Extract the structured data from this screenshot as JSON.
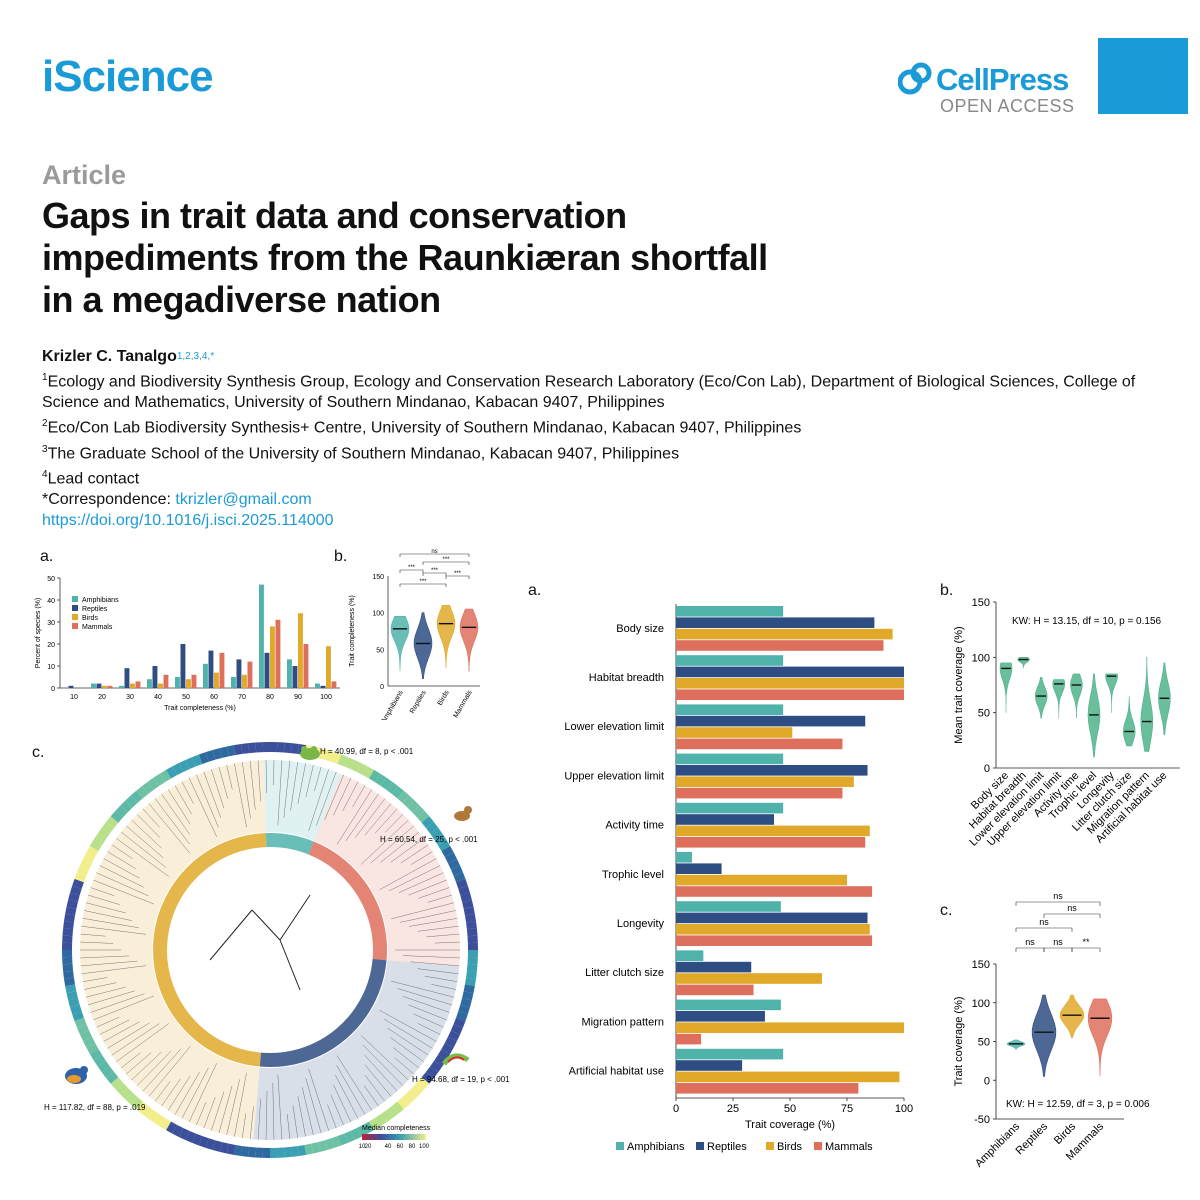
{
  "header": {
    "journal": "iScience",
    "publisher": "CellPress",
    "publisher_sub": "OPEN ACCESS",
    "brand_color": "#1a9bd7"
  },
  "article": {
    "type": "Article",
    "title": "Gaps in trait data and conservation impediments from the Raunkiæran shortfall in a megadiverse nation",
    "author": "Krizler C. Tanalgo",
    "author_sup": "1,2,3,4,*",
    "affiliations": [
      {
        "sup": "1",
        "text": "Ecology and Biodiversity Synthesis Group, Ecology and Conservation Research Laboratory (Eco/Con Lab), Department of Biological Sciences, College of Science and Mathematics, University of Southern Mindanao, Kabacan 9407, Philippines"
      },
      {
        "sup": "2",
        "text": "Eco/Con Lab Biodiversity Synthesis+ Centre, University of Southern Mindanao, Kabacan 9407, Philippines"
      },
      {
        "sup": "3",
        "text": "The Graduate School of the University of Southern Mindanao, Kabacan 9407, Philippines"
      },
      {
        "sup": "4",
        "text": "Lead contact"
      }
    ],
    "correspondence_label": "*Correspondence: ",
    "email": "tkrizler@gmail.com",
    "doi": "https://doi.org/10.1016/j.isci.2025.114000"
  },
  "figure_left": {
    "panel_a": "a.",
    "panel_b": "b.",
    "panel_c": "c.",
    "stats_frog": "H = 40.99, df = 8, p < .001",
    "stats_monkey": "H = 60.54, df = 25, p < .001",
    "stats_lizard": "H = 94.68, df = 19, p < .001",
    "stats_bird": "H = 117.82, df = 88, p = .019",
    "legend_title": "Median completeness",
    "legend_ticks": [
      "10",
      "20",
      "40",
      "60",
      "80",
      "100"
    ]
  },
  "figure_right": {
    "panel_a": "a.",
    "panel_b": "b.",
    "panel_c": "c.",
    "b_stats": "KW: H = 13.15, df = 10, p = 0.156",
    "c_stats": "KW: H = 12.59, df = 3, p = 0.006"
  },
  "colors": {
    "Amphibians": "#4fb3ab",
    "Reptiles": "#2e4d83",
    "Birds": "#e0a92a",
    "Mammals": "#de6f5c"
  },
  "chart_data": [
    {
      "id": "left-a",
      "type": "bar",
      "xlabel": "Trait completeness (%)",
      "ylabel": "Percent of species (%)",
      "ylim": [
        0,
        50
      ],
      "yticks": [
        0,
        10,
        20,
        30,
        40,
        50
      ],
      "categories": [
        "10",
        "20",
        "30",
        "40",
        "50",
        "60",
        "70",
        "80",
        "90",
        "100"
      ],
      "series": [
        {
          "name": "Amphibians",
          "values": [
            0,
            2,
            1,
            4,
            5,
            11,
            5,
            47,
            13,
            2
          ]
        },
        {
          "name": "Reptiles",
          "values": [
            1,
            2,
            9,
            10,
            20,
            17,
            13,
            16,
            10,
            1
          ]
        },
        {
          "name": "Birds",
          "values": [
            0,
            1,
            2,
            2,
            4,
            7,
            6,
            28,
            34,
            19
          ]
        },
        {
          "name": "Mammals",
          "values": [
            0,
            1,
            3,
            6,
            6,
            16,
            12,
            31,
            20,
            3
          ]
        }
      ]
    },
    {
      "id": "left-b",
      "type": "violin",
      "ylabel": "Trait completeness (%)",
      "ylim": [
        0,
        150
      ],
      "yticks": [
        0,
        50,
        100,
        150
      ],
      "categories": [
        "Amphibians",
        "Reptiles",
        "Birds",
        "Mammals"
      ],
      "medians": [
        78,
        58,
        85,
        80
      ],
      "significance": [
        "ns",
        "***",
        "***",
        "***",
        "***",
        "***"
      ]
    },
    {
      "id": "right-a",
      "type": "bar",
      "orientation": "horizontal",
      "xlabel": "Trait coverage (%)",
      "xlim": [
        0,
        100
      ],
      "xticks": [
        0,
        25,
        50,
        75,
        100
      ],
      "categories": [
        "Body size",
        "Habitat breadth",
        "Lower elevation limit",
        "Upper elevation limit",
        "Activity time",
        "Trophic level",
        "Longevity",
        "Litter clutch size",
        "Migration pattern",
        "Artificial habitat use"
      ],
      "series": [
        {
          "name": "Amphibians",
          "values": [
            47,
            47,
            47,
            47,
            47,
            7,
            46,
            12,
            46,
            47
          ]
        },
        {
          "name": "Reptiles",
          "values": [
            87,
            100,
            83,
            84,
            43,
            20,
            84,
            33,
            39,
            29
          ]
        },
        {
          "name": "Birds",
          "values": [
            95,
            100,
            51,
            78,
            85,
            75,
            85,
            64,
            100,
            98
          ]
        },
        {
          "name": "Mammals",
          "values": [
            91,
            100,
            73,
            73,
            83,
            86,
            86,
            34,
            11,
            80
          ]
        }
      ]
    },
    {
      "id": "right-b",
      "type": "violin",
      "ylabel": "Mean trait coverage (%)",
      "ylim": [
        0,
        150
      ],
      "yticks": [
        0,
        50,
        100,
        150
      ],
      "categories": [
        "Body size",
        "Habitat breadth",
        "Lower elevation limit",
        "Upper elevation limit",
        "Activity time",
        "Trophic level",
        "Longevity",
        "Litter clutch size",
        "Migration pattern",
        "Artificial habitat use"
      ],
      "medians": [
        90,
        98,
        65,
        76,
        75,
        48,
        83,
        33,
        42,
        63
      ]
    },
    {
      "id": "right-c",
      "type": "violin",
      "ylabel": "Trait coverage (%)",
      "ylim": [
        -50,
        150
      ],
      "yticks": [
        -50,
        0,
        50,
        100,
        150
      ],
      "categories": [
        "Amphibians",
        "Reptiles",
        "Birds",
        "Mammals"
      ],
      "medians": [
        47,
        62,
        84,
        80
      ],
      "significance": [
        "ns",
        "ns",
        "**",
        "ns",
        "ns",
        "ns"
      ]
    }
  ]
}
